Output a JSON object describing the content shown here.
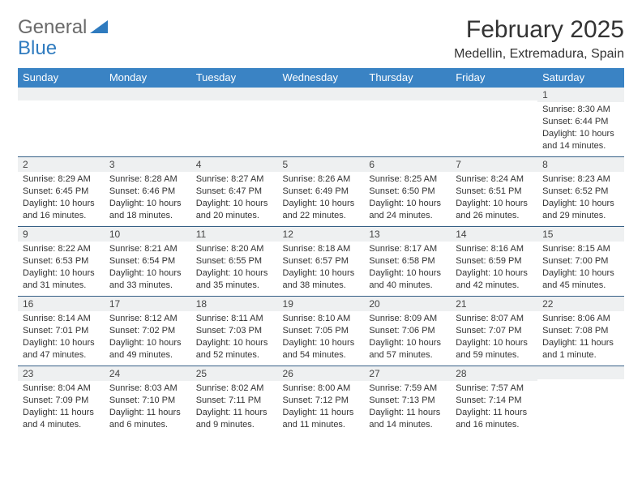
{
  "logo": {
    "general": "General",
    "blue": "Blue"
  },
  "header": {
    "title": "February 2025",
    "location": "Medellin, Extremadura, Spain"
  },
  "colors": {
    "header_bg": "#3a83c4",
    "header_text": "#ffffff",
    "border": "#355f86",
    "daynum_bg": "#eef0f1",
    "body_text": "#333333",
    "logo_gray": "#6a6a6a",
    "logo_blue": "#2f7bbf"
  },
  "typography": {
    "title_fontsize": 30,
    "location_fontsize": 16,
    "dayheader_fontsize": 13,
    "daynum_fontsize": 12,
    "body_fontsize": 11
  },
  "days": [
    "Sunday",
    "Monday",
    "Tuesday",
    "Wednesday",
    "Thursday",
    "Friday",
    "Saturday"
  ],
  "weeks": [
    [
      {
        "n": "",
        "sr": "",
        "ss": "",
        "dl": ""
      },
      {
        "n": "",
        "sr": "",
        "ss": "",
        "dl": ""
      },
      {
        "n": "",
        "sr": "",
        "ss": "",
        "dl": ""
      },
      {
        "n": "",
        "sr": "",
        "ss": "",
        "dl": ""
      },
      {
        "n": "",
        "sr": "",
        "ss": "",
        "dl": ""
      },
      {
        "n": "",
        "sr": "",
        "ss": "",
        "dl": ""
      },
      {
        "n": "1",
        "sr": "Sunrise: 8:30 AM",
        "ss": "Sunset: 6:44 PM",
        "dl": "Daylight: 10 hours and 14 minutes."
      }
    ],
    [
      {
        "n": "2",
        "sr": "Sunrise: 8:29 AM",
        "ss": "Sunset: 6:45 PM",
        "dl": "Daylight: 10 hours and 16 minutes."
      },
      {
        "n": "3",
        "sr": "Sunrise: 8:28 AM",
        "ss": "Sunset: 6:46 PM",
        "dl": "Daylight: 10 hours and 18 minutes."
      },
      {
        "n": "4",
        "sr": "Sunrise: 8:27 AM",
        "ss": "Sunset: 6:47 PM",
        "dl": "Daylight: 10 hours and 20 minutes."
      },
      {
        "n": "5",
        "sr": "Sunrise: 8:26 AM",
        "ss": "Sunset: 6:49 PM",
        "dl": "Daylight: 10 hours and 22 minutes."
      },
      {
        "n": "6",
        "sr": "Sunrise: 8:25 AM",
        "ss": "Sunset: 6:50 PM",
        "dl": "Daylight: 10 hours and 24 minutes."
      },
      {
        "n": "7",
        "sr": "Sunrise: 8:24 AM",
        "ss": "Sunset: 6:51 PM",
        "dl": "Daylight: 10 hours and 26 minutes."
      },
      {
        "n": "8",
        "sr": "Sunrise: 8:23 AM",
        "ss": "Sunset: 6:52 PM",
        "dl": "Daylight: 10 hours and 29 minutes."
      }
    ],
    [
      {
        "n": "9",
        "sr": "Sunrise: 8:22 AM",
        "ss": "Sunset: 6:53 PM",
        "dl": "Daylight: 10 hours and 31 minutes."
      },
      {
        "n": "10",
        "sr": "Sunrise: 8:21 AM",
        "ss": "Sunset: 6:54 PM",
        "dl": "Daylight: 10 hours and 33 minutes."
      },
      {
        "n": "11",
        "sr": "Sunrise: 8:20 AM",
        "ss": "Sunset: 6:55 PM",
        "dl": "Daylight: 10 hours and 35 minutes."
      },
      {
        "n": "12",
        "sr": "Sunrise: 8:18 AM",
        "ss": "Sunset: 6:57 PM",
        "dl": "Daylight: 10 hours and 38 minutes."
      },
      {
        "n": "13",
        "sr": "Sunrise: 8:17 AM",
        "ss": "Sunset: 6:58 PM",
        "dl": "Daylight: 10 hours and 40 minutes."
      },
      {
        "n": "14",
        "sr": "Sunrise: 8:16 AM",
        "ss": "Sunset: 6:59 PM",
        "dl": "Daylight: 10 hours and 42 minutes."
      },
      {
        "n": "15",
        "sr": "Sunrise: 8:15 AM",
        "ss": "Sunset: 7:00 PM",
        "dl": "Daylight: 10 hours and 45 minutes."
      }
    ],
    [
      {
        "n": "16",
        "sr": "Sunrise: 8:14 AM",
        "ss": "Sunset: 7:01 PM",
        "dl": "Daylight: 10 hours and 47 minutes."
      },
      {
        "n": "17",
        "sr": "Sunrise: 8:12 AM",
        "ss": "Sunset: 7:02 PM",
        "dl": "Daylight: 10 hours and 49 minutes."
      },
      {
        "n": "18",
        "sr": "Sunrise: 8:11 AM",
        "ss": "Sunset: 7:03 PM",
        "dl": "Daylight: 10 hours and 52 minutes."
      },
      {
        "n": "19",
        "sr": "Sunrise: 8:10 AM",
        "ss": "Sunset: 7:05 PM",
        "dl": "Daylight: 10 hours and 54 minutes."
      },
      {
        "n": "20",
        "sr": "Sunrise: 8:09 AM",
        "ss": "Sunset: 7:06 PM",
        "dl": "Daylight: 10 hours and 57 minutes."
      },
      {
        "n": "21",
        "sr": "Sunrise: 8:07 AM",
        "ss": "Sunset: 7:07 PM",
        "dl": "Daylight: 10 hours and 59 minutes."
      },
      {
        "n": "22",
        "sr": "Sunrise: 8:06 AM",
        "ss": "Sunset: 7:08 PM",
        "dl": "Daylight: 11 hours and 1 minute."
      }
    ],
    [
      {
        "n": "23",
        "sr": "Sunrise: 8:04 AM",
        "ss": "Sunset: 7:09 PM",
        "dl": "Daylight: 11 hours and 4 minutes."
      },
      {
        "n": "24",
        "sr": "Sunrise: 8:03 AM",
        "ss": "Sunset: 7:10 PM",
        "dl": "Daylight: 11 hours and 6 minutes."
      },
      {
        "n": "25",
        "sr": "Sunrise: 8:02 AM",
        "ss": "Sunset: 7:11 PM",
        "dl": "Daylight: 11 hours and 9 minutes."
      },
      {
        "n": "26",
        "sr": "Sunrise: 8:00 AM",
        "ss": "Sunset: 7:12 PM",
        "dl": "Daylight: 11 hours and 11 minutes."
      },
      {
        "n": "27",
        "sr": "Sunrise: 7:59 AM",
        "ss": "Sunset: 7:13 PM",
        "dl": "Daylight: 11 hours and 14 minutes."
      },
      {
        "n": "28",
        "sr": "Sunrise: 7:57 AM",
        "ss": "Sunset: 7:14 PM",
        "dl": "Daylight: 11 hours and 16 minutes."
      },
      {
        "n": "",
        "sr": "",
        "ss": "",
        "dl": ""
      }
    ]
  ]
}
